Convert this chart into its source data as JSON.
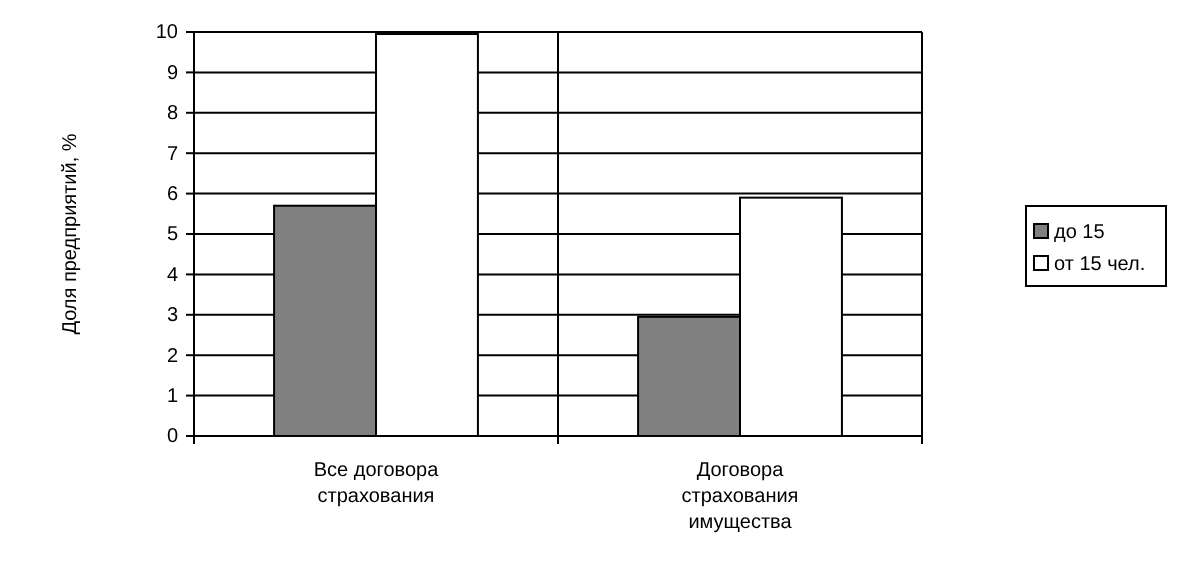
{
  "chart_data": {
    "type": "bar",
    "ylabel": "Доля предприятий, %",
    "categories": [
      "Все договора страхования",
      "Договора страхования имущества"
    ],
    "series": [
      {
        "name": "до 15",
        "color": "#808080",
        "values": [
          5.7,
          2.95
        ]
      },
      {
        "name": "от 15 чел.",
        "color": "#ffffff",
        "values": [
          9.95,
          5.9
        ]
      }
    ],
    "ylim": [
      0,
      10
    ],
    "yticks": [
      0,
      1,
      2,
      3,
      4,
      5,
      6,
      7,
      8,
      9,
      10
    ],
    "grid": "y",
    "legend": "right"
  }
}
